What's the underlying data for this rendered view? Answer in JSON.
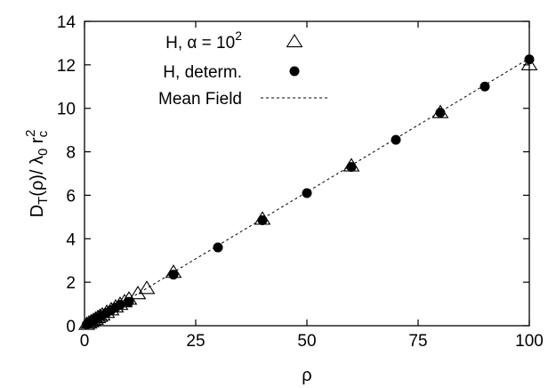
{
  "chart_data": {
    "type": "scatter",
    "title": "",
    "xlabel": "ρ",
    "ylabel": "D_T(ρ)/ λ_0 r_c^2",
    "xlim": [
      0,
      100
    ],
    "ylim": [
      0,
      14
    ],
    "xticks": [
      0,
      25,
      50,
      75,
      100
    ],
    "yticks": [
      0,
      2,
      4,
      6,
      8,
      10,
      12,
      14
    ],
    "grid": false,
    "legend_position": "top-left",
    "legend": [
      {
        "text": "H, α = 10",
        "sup": "2",
        "marker": "open-triangle"
      },
      {
        "text": "H, determ.",
        "marker": "filled-circle"
      },
      {
        "text": "Mean Field",
        "marker": "dashed-line"
      }
    ],
    "series": [
      {
        "name": "H, α = 10^2",
        "marker": "open-triangle",
        "x": [
          0.5,
          1,
          1.5,
          2,
          2.5,
          3,
          3.5,
          4,
          5,
          6,
          7,
          8,
          9,
          10,
          12,
          14,
          20,
          40,
          60,
          80,
          100
        ],
        "y": [
          0.06,
          0.12,
          0.18,
          0.24,
          0.3,
          0.37,
          0.43,
          0.49,
          0.61,
          0.73,
          0.86,
          0.98,
          1.1,
          1.22,
          1.47,
          1.71,
          2.45,
          4.9,
          7.35,
          9.8,
          12.0
        ]
      },
      {
        "name": "H, determ.",
        "marker": "filled-circle",
        "x": [
          0.5,
          1,
          1.5,
          2,
          2.5,
          3,
          4,
          5,
          6,
          7,
          8,
          10,
          20,
          30,
          40,
          50,
          60,
          70,
          80,
          90,
          100
        ],
        "y": [
          0.06,
          0.12,
          0.18,
          0.24,
          0.3,
          0.36,
          0.48,
          0.6,
          0.72,
          0.84,
          0.96,
          1.1,
          2.35,
          3.6,
          4.85,
          6.1,
          7.3,
          8.55,
          9.8,
          11.0,
          12.25
        ]
      },
      {
        "name": "Mean Field",
        "type": "line",
        "style": "dashed",
        "x": [
          0,
          100
        ],
        "y": [
          0,
          12.3
        ]
      }
    ]
  }
}
